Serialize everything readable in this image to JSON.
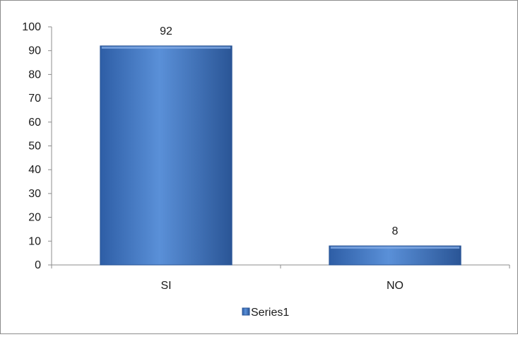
{
  "chart_data": {
    "type": "bar",
    "categories": [
      "SI",
      "NO"
    ],
    "series": [
      {
        "name": "Series1",
        "values": [
          92,
          8
        ]
      }
    ],
    "ylim": [
      0,
      100
    ],
    "yticks": [
      0,
      10,
      20,
      30,
      40,
      50,
      60,
      70,
      80,
      90,
      100
    ],
    "grid": false,
    "legend_position": "bottom",
    "data_labels": true,
    "bar_color": "#4A7EC8"
  }
}
